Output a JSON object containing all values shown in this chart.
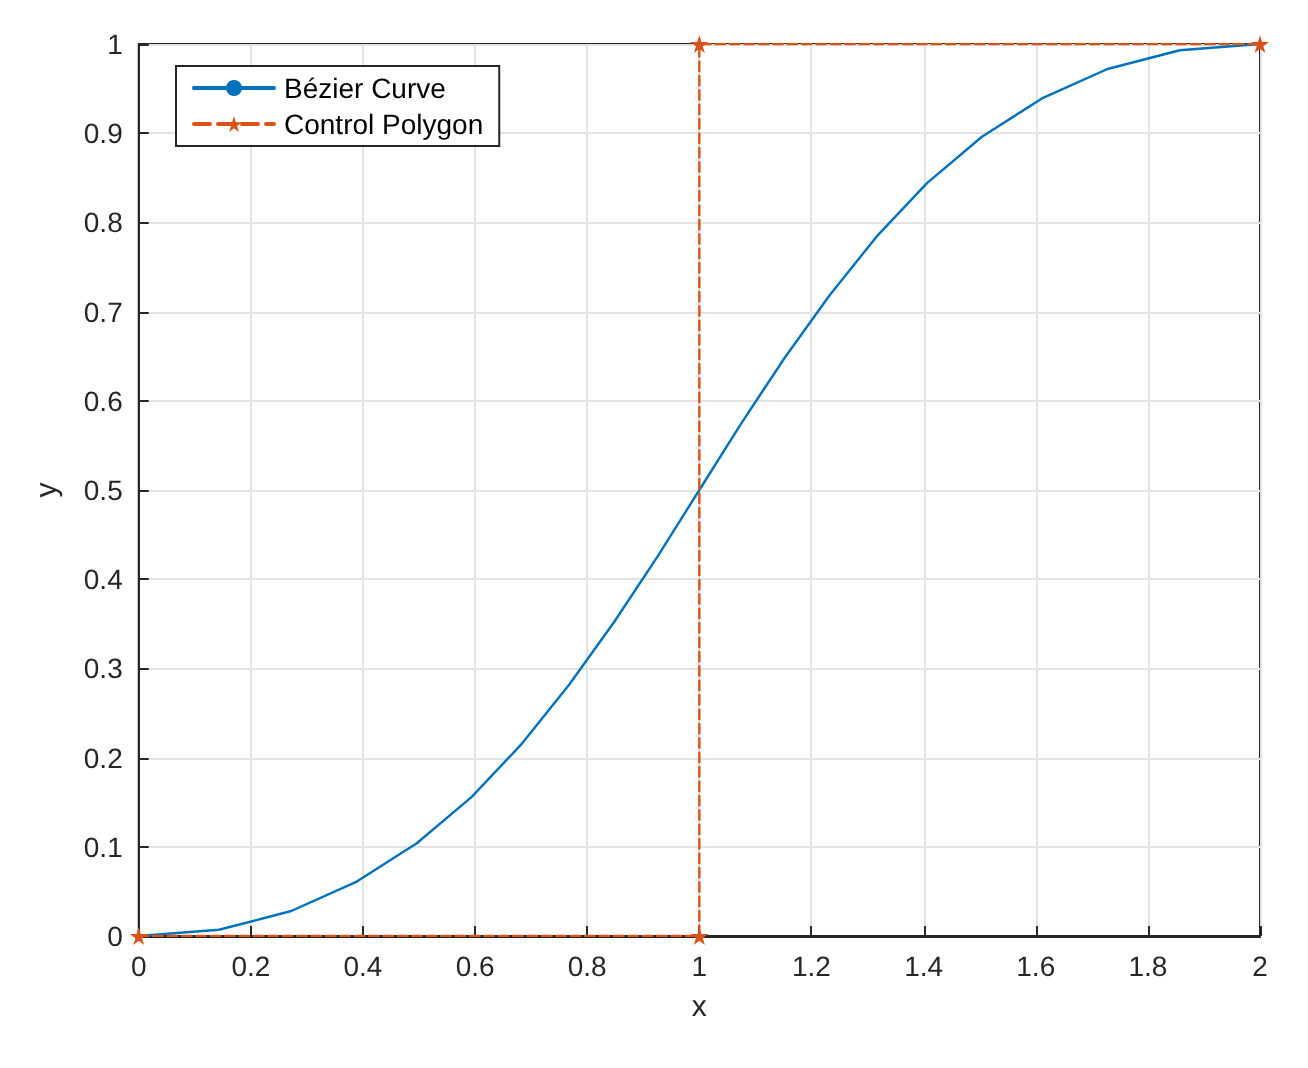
{
  "chart_data": {
    "type": "line",
    "xlabel": "x",
    "ylabel": "y",
    "xlim": [
      0,
      2
    ],
    "xticks": [
      0,
      0.2,
      0.4,
      0.6,
      0.8,
      1,
      1.2,
      1.4,
      1.6,
      1.8,
      2
    ],
    "ylim": [
      0,
      1
    ],
    "yticks": [
      0,
      0.1,
      0.2,
      0.3,
      0.4,
      0.5,
      0.6,
      0.7,
      0.8,
      0.9,
      1
    ],
    "grid": true,
    "legend": "top left",
    "series": [
      {
        "name": "Bézier Curve",
        "color": "#0072bd",
        "line_style": "solid",
        "marker": "none",
        "x": [
          0,
          0.143,
          0.272,
          0.389,
          0.496,
          0.594,
          0.684,
          0.768,
          0.848,
          0.925,
          1,
          1.075,
          1.152,
          1.232,
          1.316,
          1.406,
          1.504,
          1.611,
          1.728,
          1.857,
          2
        ],
        "values": [
          0,
          0.007,
          0.028,
          0.061,
          0.104,
          0.156,
          0.216,
          0.282,
          0.352,
          0.425,
          0.5,
          0.575,
          0.648,
          0.718,
          0.784,
          0.844,
          0.896,
          0.939,
          0.972,
          0.993,
          1
        ]
      },
      {
        "name": "Control Polygon",
        "color": "#d95319",
        "line_style": "dashed",
        "marker": "star",
        "x": [
          0,
          1,
          1,
          2
        ],
        "values": [
          0,
          0,
          1,
          1
        ]
      }
    ]
  }
}
